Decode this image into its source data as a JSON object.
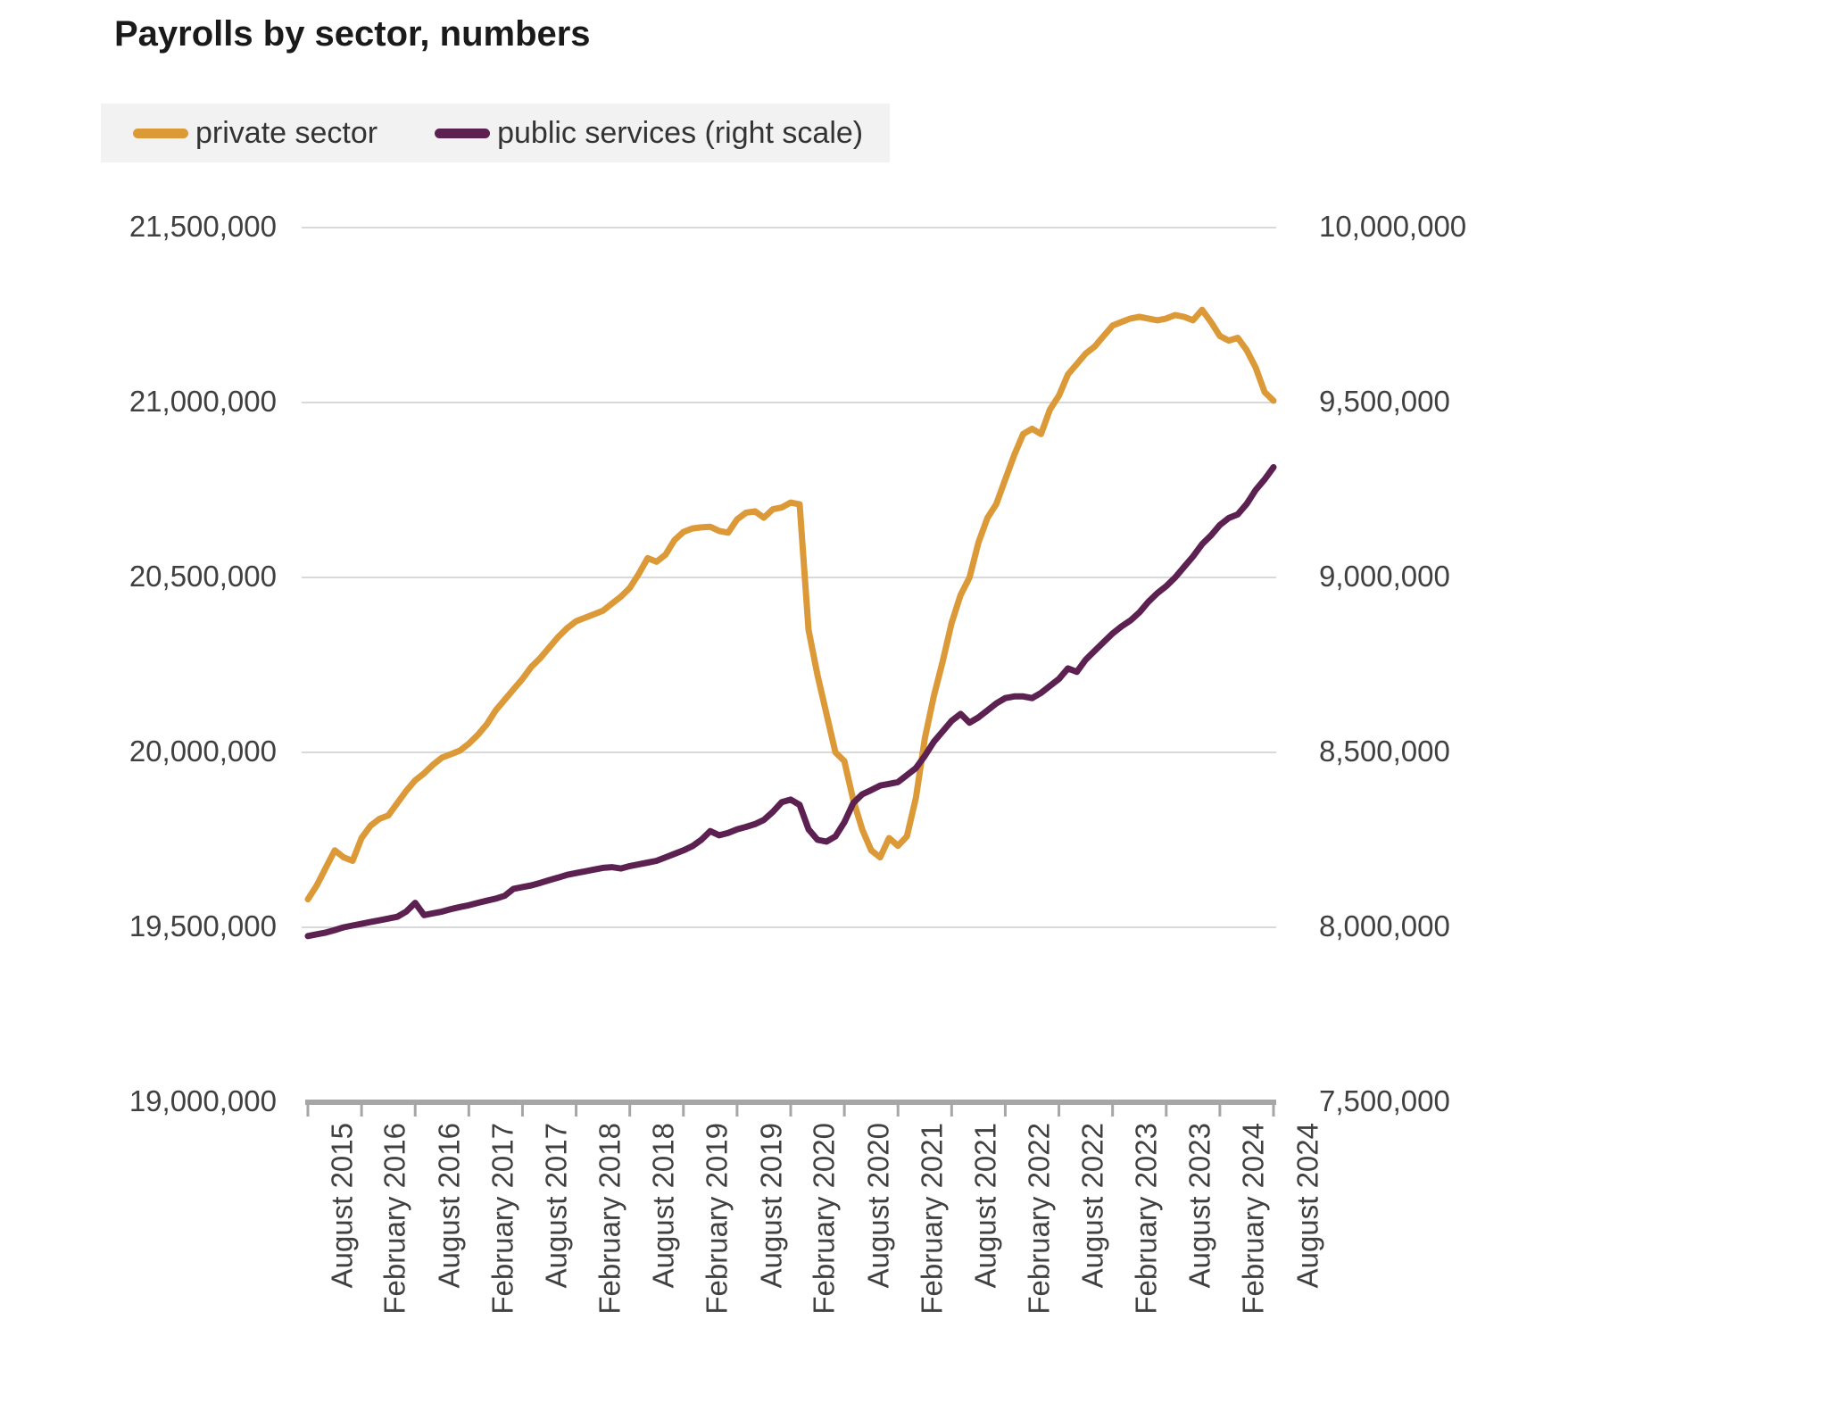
{
  "title": "Payrolls by sector, numbers",
  "legend": {
    "items": [
      {
        "label": "private sector",
        "color": "#DC9938"
      },
      {
        "label": "public services (right scale)",
        "color": "#5C2150"
      }
    ]
  },
  "y_axis_left": {
    "ticks": [
      "21,500,000",
      "21,000,000",
      "20,500,000",
      "20,000,000",
      "19,500,000",
      "19,000,000"
    ]
  },
  "y_axis_right": {
    "ticks": [
      "10,000,000",
      "9,500,000",
      "9,000,000",
      "8,500,000",
      "8,000,000",
      "7,500,000"
    ]
  },
  "x_axis": {
    "ticks": [
      "August 2015",
      "February 2016",
      "August 2016",
      "February 2017",
      "August 2017",
      "February 2018",
      "August 2018",
      "February 2019",
      "August 2019",
      "February 2020",
      "August 2020",
      "February 2021",
      "August 2021",
      "February 2022",
      "August 2022",
      "February 2023",
      "August 2023",
      "February 2024",
      "August 2024"
    ]
  },
  "chart_data": {
    "type": "line",
    "title": "Payrolls by sector, numbers",
    "x_start": "2015-08",
    "x_interval": "month",
    "x_tick_labels": [
      "August 2015",
      "February 2016",
      "August 2016",
      "February 2017",
      "August 2017",
      "February 2018",
      "August 2018",
      "February 2019",
      "August 2019",
      "February 2020",
      "August 2020",
      "February 2021",
      "August 2021",
      "February 2022",
      "August 2022",
      "February 2023",
      "August 2023",
      "February 2024",
      "August 2024"
    ],
    "grid": "horizontal",
    "legend_position": "top-left",
    "left_axis": {
      "min": 19000000,
      "max": 21500000,
      "tick_step": 500000
    },
    "right_axis": {
      "min": 7500000,
      "max": 10000000,
      "tick_step": 500000
    },
    "unit": "employees",
    "series": [
      {
        "name": "private sector",
        "axis": "left",
        "color": "#DC9938",
        "values_millions": [
          19.58,
          19.62,
          19.67,
          19.72,
          19.7,
          19.69,
          19.755,
          19.79,
          19.81,
          19.82,
          19.855,
          19.89,
          19.92,
          19.94,
          19.965,
          19.985,
          19.995,
          20.005,
          20.025,
          20.05,
          20.08,
          20.12,
          20.15,
          20.18,
          20.21,
          20.245,
          20.27,
          20.3,
          20.33,
          20.355,
          20.375,
          20.385,
          20.395,
          20.405,
          20.425,
          20.445,
          20.47,
          20.51,
          20.555,
          20.545,
          20.565,
          20.607,
          20.63,
          20.64,
          20.643,
          20.645,
          20.633,
          20.628,
          20.666,
          20.685,
          20.689,
          20.671,
          20.695,
          20.7,
          20.714,
          20.709,
          20.35,
          20.22,
          20.11,
          20.0,
          19.975,
          19.864,
          19.78,
          19.72,
          19.7,
          19.755,
          19.733,
          19.76,
          19.87,
          20.04,
          20.16,
          20.26,
          20.37,
          20.45,
          20.5,
          20.6,
          20.67,
          20.71,
          20.78,
          20.85,
          20.91,
          20.925,
          20.91,
          20.98,
          21.02,
          21.08,
          21.11,
          21.14,
          21.16,
          21.19,
          21.22,
          21.23,
          21.24,
          21.245,
          21.24,
          21.235,
          21.24,
          21.25,
          21.245,
          21.235,
          21.265,
          21.23,
          21.19,
          21.177,
          21.185,
          21.15,
          21.1,
          21.03,
          21.005
        ]
      },
      {
        "name": "public services (right scale)",
        "axis": "right",
        "color": "#5C2150",
        "values_millions": [
          7.975,
          7.98,
          7.985,
          7.992,
          8.0,
          8.005,
          8.01,
          8.015,
          8.02,
          8.025,
          8.03,
          8.045,
          8.07,
          8.035,
          8.04,
          8.045,
          8.052,
          8.058,
          8.063,
          8.07,
          8.076,
          8.082,
          8.09,
          8.11,
          8.115,
          8.12,
          8.127,
          8.135,
          8.142,
          8.15,
          8.155,
          8.16,
          8.165,
          8.17,
          8.172,
          8.168,
          8.175,
          8.18,
          8.185,
          8.19,
          8.2,
          8.21,
          8.22,
          8.232,
          8.25,
          8.275,
          8.263,
          8.27,
          8.28,
          8.287,
          8.295,
          8.307,
          8.33,
          8.358,
          8.365,
          8.35,
          8.28,
          8.25,
          8.245,
          8.26,
          8.3,
          8.355,
          8.38,
          8.392,
          8.405,
          8.41,
          8.415,
          8.435,
          8.455,
          8.49,
          8.53,
          8.56,
          8.59,
          8.61,
          8.585,
          8.6,
          8.62,
          8.64,
          8.655,
          8.66,
          8.66,
          8.655,
          8.67,
          8.69,
          8.71,
          8.74,
          8.73,
          8.765,
          8.79,
          8.815,
          8.84,
          8.86,
          8.877,
          8.9,
          8.93,
          8.955,
          8.975,
          9.0,
          9.03,
          9.06,
          9.095,
          9.12,
          9.15,
          9.17,
          9.18,
          9.21,
          9.25,
          9.28,
          9.315
        ]
      }
    ]
  }
}
